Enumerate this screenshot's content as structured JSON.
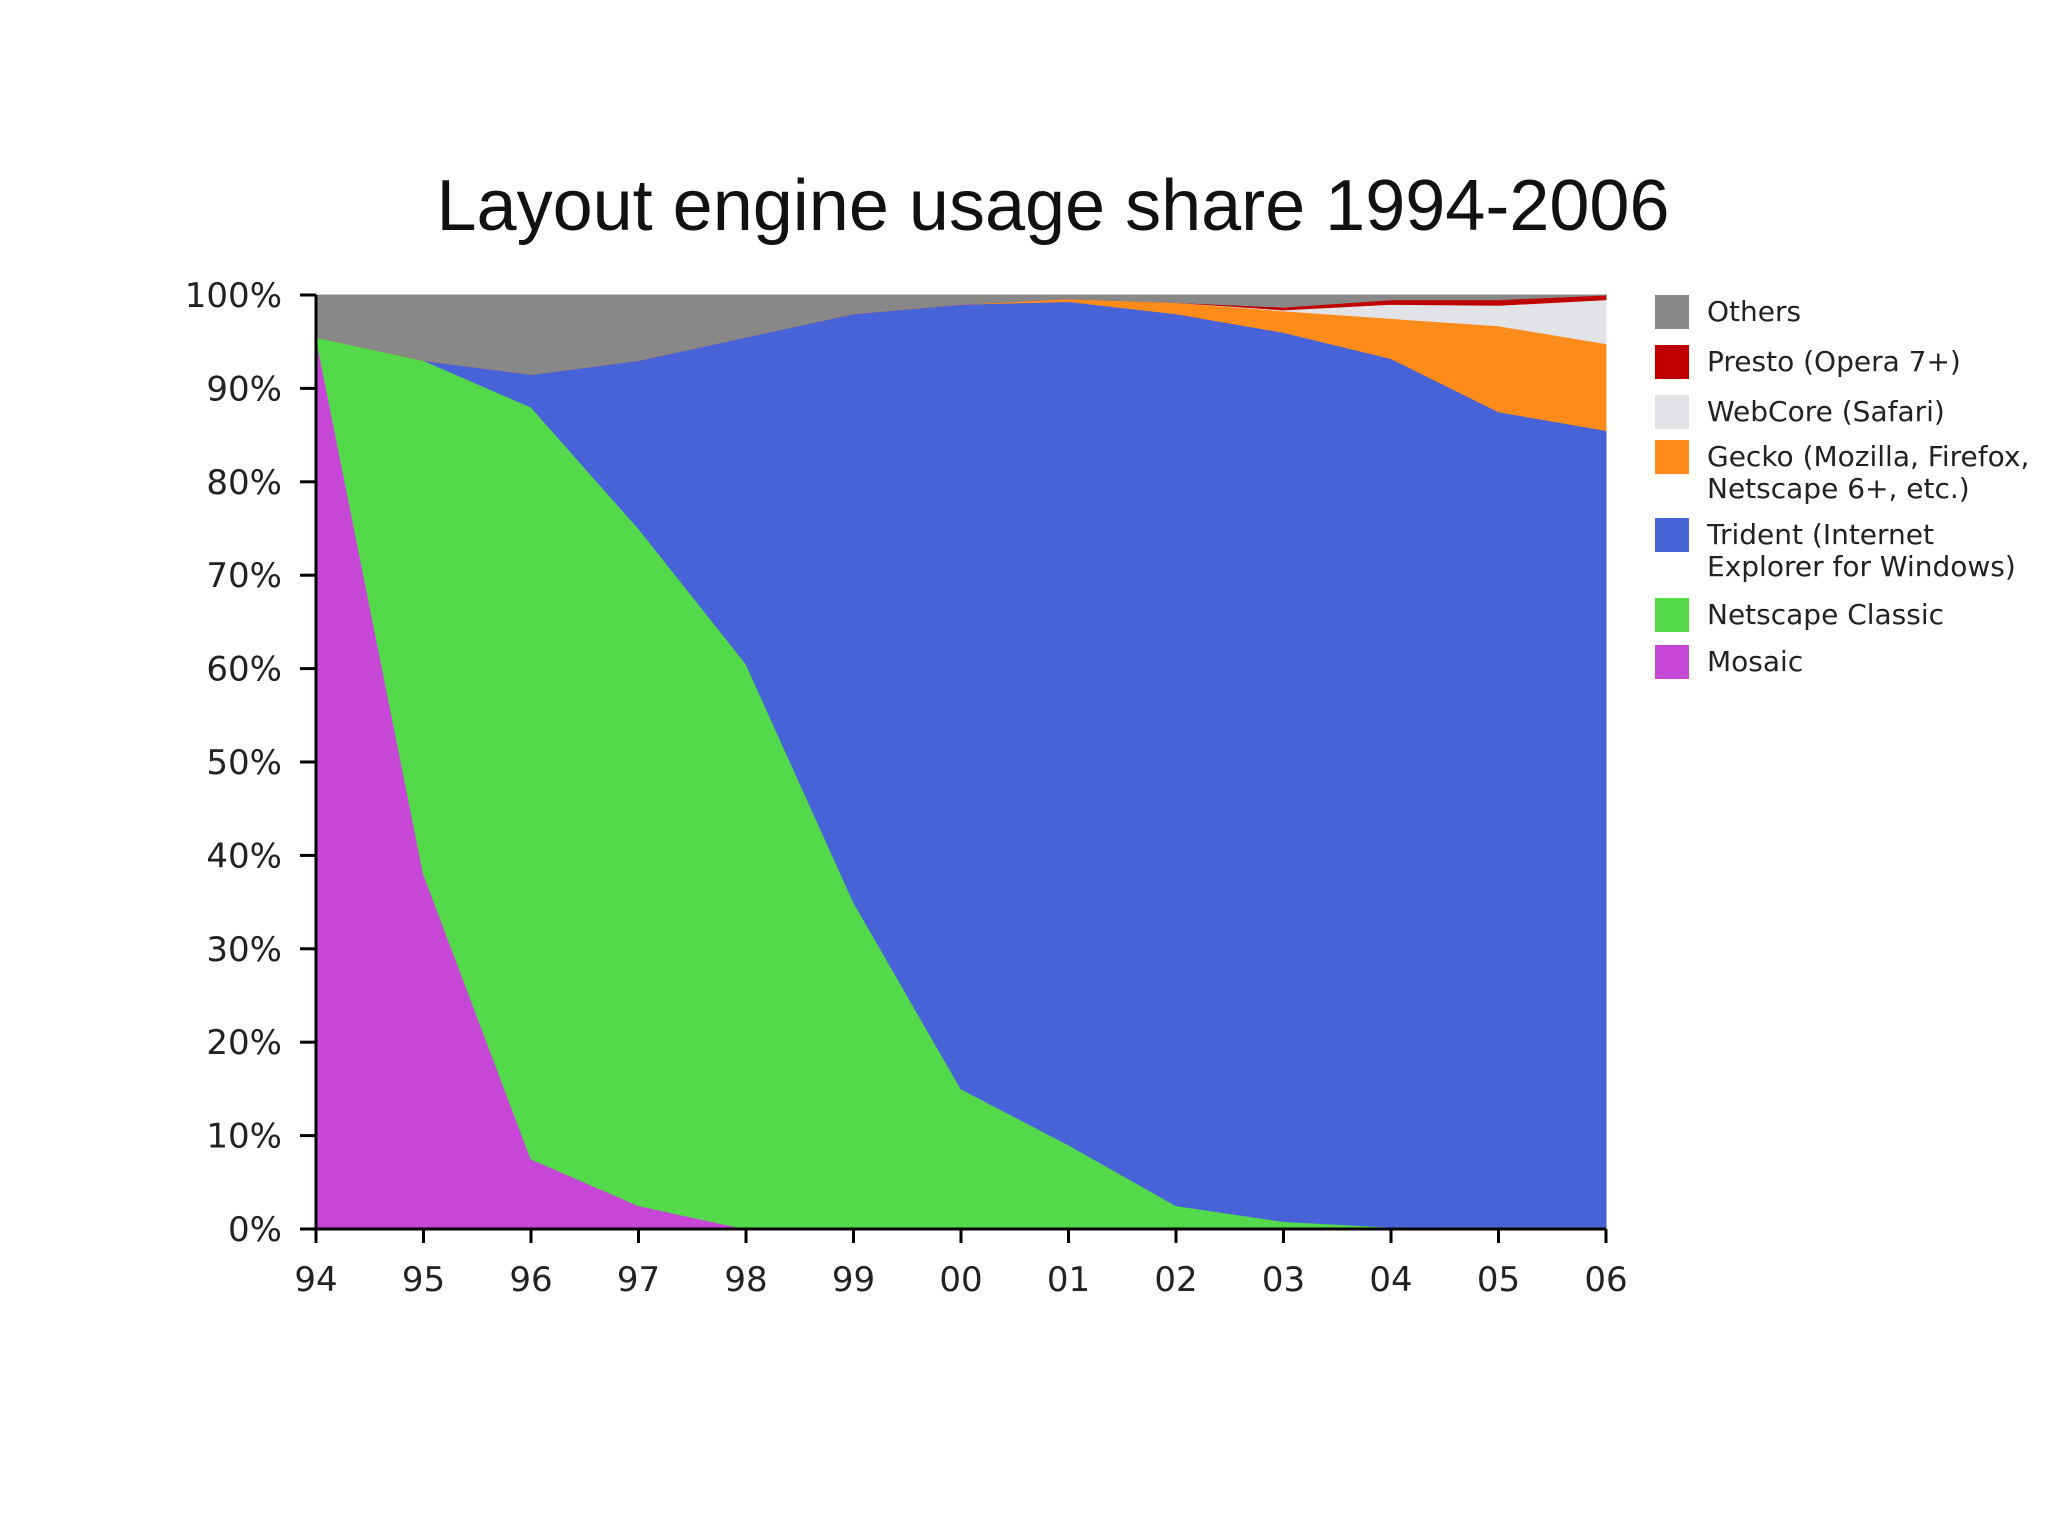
{
  "chart_data": {
    "type": "area",
    "stacked": true,
    "normalized": true,
    "title": "Layout engine usage share 1994-2006",
    "xlabel": "",
    "ylabel": "",
    "x": [
      1994,
      1995,
      1996,
      1997,
      1998,
      1999,
      2000,
      2001,
      2002,
      2003,
      2004,
      2005,
      2006
    ],
    "x_tick_labels": [
      "94",
      "95",
      "96",
      "97",
      "98",
      "99",
      "00",
      "01",
      "02",
      "03",
      "04",
      "05",
      "06"
    ],
    "y_ticks": [
      0,
      10,
      20,
      30,
      40,
      50,
      60,
      70,
      80,
      90,
      100
    ],
    "y_tick_labels": [
      "0%",
      "10%",
      "20%",
      "30%",
      "40%",
      "50%",
      "60%",
      "70%",
      "80%",
      "90%",
      "100%"
    ],
    "ylim": [
      0,
      100
    ],
    "grid": false,
    "legend_position": "right",
    "series": [
      {
        "name": "Mosaic",
        "color": "#c646d6",
        "values": [
          95.5,
          38,
          7.5,
          2.5,
          0,
          0,
          0,
          0,
          0,
          0,
          0,
          0,
          0
        ]
      },
      {
        "name": "Netscape Classic",
        "color": "#54d94a",
        "values": [
          0,
          55,
          80.5,
          72.5,
          60.5,
          35,
          15,
          9,
          2.5,
          0.8,
          0.2,
          0,
          0
        ]
      },
      {
        "name": "Trident (Internet Explorer for Windows)",
        "color": "#4863d8",
        "values": [
          0,
          0,
          3.5,
          18,
          35,
          63,
          84,
          90.3,
          95.5,
          95.2,
          93,
          87.5,
          85.5
        ]
      },
      {
        "name": "Gecko (Mozilla, Firefox, Netscape 6+, etc.)",
        "color": "#ff8c1a",
        "values": [
          0,
          0,
          0,
          0,
          0,
          0,
          0,
          0.3,
          1.2,
          2.3,
          4.3,
          9.2,
          9.3
        ]
      },
      {
        "name": "WebCore (Safari)",
        "color": "#e2e3e7",
        "values": [
          0,
          0,
          0,
          0,
          0,
          0,
          0,
          0,
          0,
          0.1,
          1.5,
          2.2,
          4.7
        ]
      },
      {
        "name": "Presto (Opera 7+)",
        "color": "#c00000",
        "values": [
          0,
          0,
          0,
          0,
          0,
          0,
          0,
          0,
          0,
          0.3,
          0.5,
          0.6,
          0.5
        ]
      },
      {
        "name": "Others",
        "color": "#888888",
        "values": [
          4.5,
          7,
          8.5,
          7,
          4.5,
          2,
          1,
          0.4,
          0.8,
          1.3,
          0.5,
          0.5,
          0
        ]
      }
    ],
    "legend": [
      {
        "lines": [
          "Others"
        ],
        "color": "#888888"
      },
      {
        "lines": [
          "Presto (Opera 7+)"
        ],
        "color": "#c00000"
      },
      {
        "lines": [
          "WebCore (Safari)"
        ],
        "color": "#e2e3e7"
      },
      {
        "lines": [
          "Gecko (Mozilla, Firefox,",
          "Netscape 6+, etc.)"
        ],
        "color": "#ff8c1a"
      },
      {
        "lines": [
          "Trident (Internet",
          "Explorer for Windows)"
        ],
        "color": "#4863d8"
      },
      {
        "lines": [
          "Netscape Classic"
        ],
        "color": "#54d94a"
      },
      {
        "lines": [
          "Mosaic"
        ],
        "color": "#c646d6"
      }
    ]
  }
}
